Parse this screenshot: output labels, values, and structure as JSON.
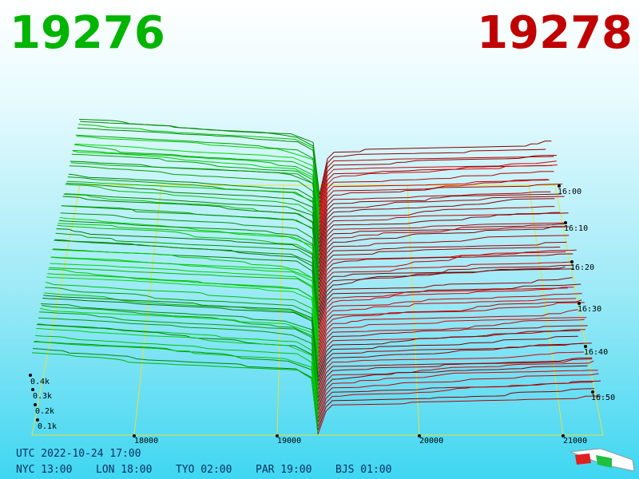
{
  "header": {
    "bid": "19276",
    "ask": "19278"
  },
  "price_axis": [
    "18000",
    "19000",
    "20000",
    "21000"
  ],
  "depth_axis": [
    "0.1k",
    "0.2k",
    "0.3k",
    "0.4k"
  ],
  "time_axis": [
    "16:00",
    "16:10",
    "16:20",
    "16:30",
    "16:40",
    "16:50"
  ],
  "footer": {
    "utc": "UTC 2022-10-24 17:00",
    "zones": [
      "NYC 13:00",
      "LON 18:00",
      "TYO 02:00",
      "PAR 19:00",
      "BJS 01:00"
    ]
  }
}
